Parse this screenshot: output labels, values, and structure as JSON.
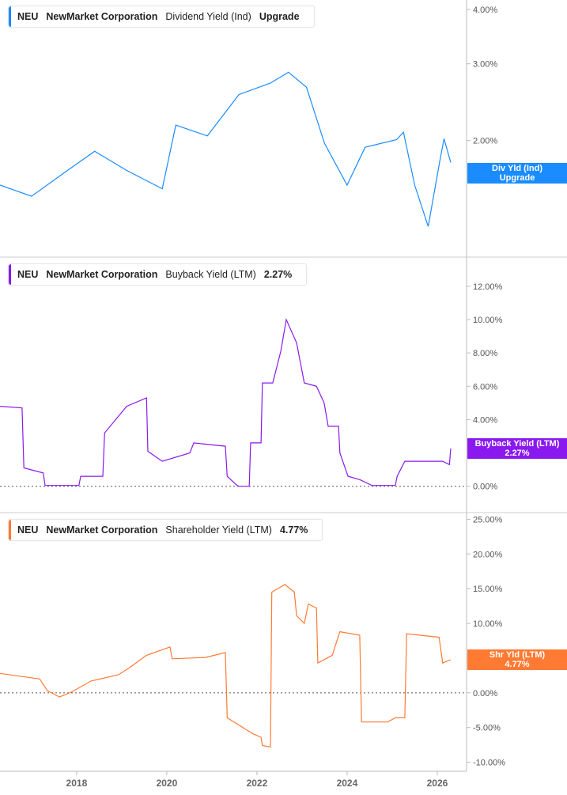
{
  "chart_data": [
    {
      "type": "line",
      "ticker": "NEU",
      "company": "NewMarket Corporation",
      "metric": "Dividend Yield (Ind)",
      "value_label": "Upgrade",
      "tag_lines": [
        "Div Yld (Ind)",
        "Upgrade"
      ],
      "color": "#1a8cff",
      "scale": "log",
      "ylim": [
        1.15,
        4.1
      ],
      "yticks": [
        2,
        3,
        4
      ],
      "ytick_labels": [
        "2.00%",
        "3.00%",
        "4.00%"
      ],
      "x": [
        2016.3,
        2017.0,
        2017.7,
        2018.4,
        2019.1,
        2019.9,
        2020.2,
        2020.9,
        2021.6,
        2022.3,
        2022.7,
        2023.1,
        2023.5,
        2024.0,
        2024.4,
        2025.1,
        2025.25,
        2025.5,
        2025.8,
        2026.05,
        2026.15,
        2026.3
      ],
      "values": [
        1.58,
        1.49,
        1.68,
        1.89,
        1.71,
        1.55,
        2.17,
        2.05,
        2.55,
        2.71,
        2.87,
        2.65,
        1.97,
        1.58,
        1.93,
        2.01,
        2.09,
        1.58,
        1.27,
        1.78,
        2.02,
        1.78
      ]
    },
    {
      "type": "line",
      "ticker": "NEU",
      "company": "NewMarket Corporation",
      "metric": "Buyback Yield (LTM)",
      "value_label": "2.27%",
      "tag_lines": [
        "Buyback Yield (LTM)",
        "2.27%"
      ],
      "color": "#8a19f0",
      "scale": "linear",
      "ylim": [
        -1.2,
        12.8
      ],
      "yticks": [
        0,
        2,
        4,
        6,
        8,
        10,
        12
      ],
      "ytick_labels": [
        "0.00%",
        "2.00%",
        "4.00%",
        "6.00%",
        "8.00%",
        "10.00%",
        "12.00%"
      ],
      "zero_line": true,
      "x": [
        2016.3,
        2016.79,
        2016.83,
        2017.26,
        2017.3,
        2018.05,
        2018.09,
        2018.58,
        2018.62,
        2019.11,
        2019.55,
        2019.58,
        2019.9,
        2020.51,
        2020.6,
        2021.3,
        2021.34,
        2021.56,
        2021.6,
        2021.83,
        2021.86,
        2022.09,
        2022.12,
        2022.35,
        2022.53,
        2022.65,
        2022.88,
        2023.05,
        2023.32,
        2023.49,
        2023.58,
        2023.81,
        2023.84,
        2024.02,
        2024.28,
        2024.55,
        2025.07,
        2025.11,
        2025.28,
        2025.6,
        2026.12,
        2026.27,
        2026.3
      ],
      "values": [
        4.8,
        4.7,
        1.1,
        0.8,
        0.05,
        0.05,
        0.6,
        0.6,
        3.2,
        4.8,
        5.3,
        2.1,
        1.5,
        2.0,
        2.6,
        2.4,
        0.6,
        0.05,
        0,
        0,
        2.6,
        2.6,
        6.2,
        6.2,
        8.1,
        10.0,
        8.6,
        6.2,
        6.0,
        5.0,
        3.6,
        3.6,
        2.0,
        0.6,
        0.4,
        0.05,
        0.05,
        0.6,
        1.5,
        1.5,
        1.5,
        1.3,
        2.27
      ]
    },
    {
      "type": "line",
      "ticker": "NEU",
      "company": "NewMarket Corporation",
      "metric": "Shareholder Yield (LTM)",
      "value_label": "4.77%",
      "tag_lines": [
        "Shr Yld (LTM)",
        "4.77%"
      ],
      "color": "#ff7a33",
      "scale": "linear",
      "ylim": [
        -10.5,
        25.5
      ],
      "yticks": [
        -10,
        -5,
        0,
        5,
        10,
        15,
        20,
        25
      ],
      "ytick_labels": [
        "-10.00%",
        "-5.00%",
        "0.00%",
        "5.00%",
        "10.00%",
        "15.00%",
        "20.00%",
        "25.00%"
      ],
      "zero_line": true,
      "x": [
        2016.3,
        2017.18,
        2017.35,
        2017.62,
        2017.88,
        2018.32,
        2018.93,
        2019.19,
        2019.55,
        2020.07,
        2020.12,
        2020.86,
        2021.3,
        2021.34,
        2021.91,
        2022.09,
        2022.12,
        2022.3,
        2022.33,
        2022.62,
        2022.83,
        2022.88,
        2023.05,
        2023.14,
        2023.32,
        2023.35,
        2023.67,
        2023.84,
        2024.28,
        2024.32,
        2024.9,
        2025.07,
        2025.28,
        2025.32,
        2026.04,
        2026.12,
        2026.3
      ],
      "values": [
        2.8,
        2.0,
        0.3,
        -0.6,
        0.1,
        1.7,
        2.6,
        3.7,
        5.4,
        6.6,
        4.9,
        5.1,
        5.8,
        -3.6,
        -5.9,
        -6.4,
        -7.6,
        -7.8,
        14.5,
        15.6,
        14.5,
        11.1,
        10.0,
        12.8,
        12.2,
        4.3,
        5.4,
        8.8,
        8.3,
        -4.2,
        -4.2,
        -3.6,
        -3.6,
        8.5,
        8.0,
        4.3,
        4.77
      ]
    }
  ],
  "x_axis": {
    "ticks": [
      2018,
      2020,
      2022,
      2024,
      2026
    ],
    "tick_labels": [
      "2018",
      "2020",
      "2022",
      "2024",
      "2026"
    ],
    "xlim": [
      2016.3,
      2026.65
    ]
  }
}
